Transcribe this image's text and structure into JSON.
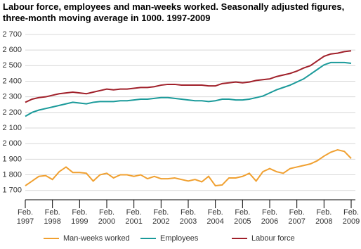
{
  "chart_data": {
    "type": "line",
    "title": "Labour force, employees and man-weeks worked. Seasonally adjusted figures, three-month moving average in 1000. 1997-2009",
    "categories": [
      "Feb. 1997",
      null,
      null,
      null,
      "Feb. 1998",
      null,
      null,
      null,
      "Feb. 1999",
      null,
      null,
      null,
      "Feb. 2000",
      null,
      null,
      null,
      "Feb. 2001",
      null,
      null,
      null,
      "Feb. 2002",
      null,
      null,
      null,
      "Feb. 2003",
      null,
      null,
      null,
      "Feb. 2004",
      null,
      null,
      null,
      "Feb. 2005",
      null,
      null,
      null,
      "Feb. 2006",
      null,
      null,
      null,
      "Feb. 2007",
      null,
      null,
      null,
      "Feb. 2008",
      null,
      null,
      null,
      "Feb. 2009"
    ],
    "series": [
      {
        "name": "Man-weeks worked",
        "color": "#f0a030",
        "values": [
          1730,
          1760,
          1790,
          1795,
          1770,
          1820,
          1850,
          1815,
          1815,
          1810,
          1760,
          1800,
          1810,
          1780,
          1800,
          1800,
          1790,
          1800,
          1775,
          1790,
          1775,
          1775,
          1780,
          1770,
          1760,
          1770,
          1755,
          1790,
          1730,
          1735,
          1780,
          1780,
          1790,
          1810,
          1760,
          1820,
          1840,
          1820,
          1810,
          1840,
          1850,
          1860,
          1870,
          1890,
          1920,
          1945,
          1960,
          1950,
          1905
        ]
      },
      {
        "name": "Employees",
        "color": "#1a9a9a",
        "values": [
          2175,
          2200,
          2215,
          2225,
          2235,
          2245,
          2255,
          2265,
          2260,
          2255,
          2265,
          2270,
          2270,
          2270,
          2275,
          2275,
          2280,
          2285,
          2285,
          2290,
          2295,
          2295,
          2290,
          2285,
          2280,
          2275,
          2275,
          2270,
          2275,
          2285,
          2285,
          2280,
          2280,
          2285,
          2295,
          2305,
          2325,
          2345,
          2360,
          2375,
          2395,
          2415,
          2445,
          2475,
          2505,
          2520,
          2520,
          2520,
          2515
        ]
      },
      {
        "name": "Labour force",
        "color": "#a0202a",
        "values": [
          2265,
          2285,
          2295,
          2300,
          2310,
          2320,
          2325,
          2330,
          2325,
          2320,
          2330,
          2340,
          2350,
          2345,
          2350,
          2350,
          2355,
          2360,
          2360,
          2365,
          2375,
          2380,
          2380,
          2375,
          2375,
          2375,
          2375,
          2370,
          2370,
          2385,
          2390,
          2395,
          2390,
          2395,
          2405,
          2410,
          2415,
          2430,
          2440,
          2450,
          2465,
          2485,
          2500,
          2530,
          2560,
          2575,
          2580,
          2590,
          2595
        ]
      }
    ],
    "ylim": [
      1640,
      2700
    ],
    "yticks": [
      {
        "value": 1700,
        "label": "1 700"
      },
      {
        "value": 1800,
        "label": "1 800"
      },
      {
        "value": 1900,
        "label": "1 900"
      },
      {
        "value": 2000,
        "label": "2 000"
      },
      {
        "value": 2100,
        "label": "2 100"
      },
      {
        "value": 2200,
        "label": "2 200"
      },
      {
        "value": 2300,
        "label": "2 300"
      },
      {
        "value": 2400,
        "label": "2 400"
      },
      {
        "value": 2500,
        "label": "2 500"
      },
      {
        "value": 2600,
        "label": "2 600"
      },
      {
        "value": 2700,
        "label": "2 700"
      }
    ],
    "grid": true,
    "legend": "bottom"
  }
}
